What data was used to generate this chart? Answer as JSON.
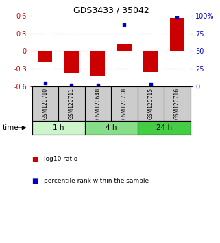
{
  "title": "GDS3433 / 35042",
  "samples": [
    "GSM120710",
    "GSM120711",
    "GSM120648",
    "GSM120708",
    "GSM120715",
    "GSM120716"
  ],
  "log10_ratio": [
    -0.18,
    -0.38,
    -0.42,
    0.12,
    -0.36,
    0.57
  ],
  "percentile_rank": [
    5,
    2,
    2,
    87,
    3,
    98
  ],
  "time_groups": [
    {
      "label": "1 h",
      "start": 0,
      "end": 2,
      "color": "#ccf5cc"
    },
    {
      "label": "4 h",
      "start": 2,
      "end": 4,
      "color": "#88dd88"
    },
    {
      "label": "24 h",
      "start": 4,
      "end": 6,
      "color": "#44cc44"
    }
  ],
  "bar_color": "#cc0000",
  "dot_color": "#0000cc",
  "ylim_left": [
    -0.6,
    0.6
  ],
  "ylim_right": [
    0,
    100
  ],
  "yticks_left": [
    -0.6,
    -0.3,
    0,
    0.3,
    0.6
  ],
  "ytick_labels_left": [
    "-0.6",
    "-0.3",
    "0",
    "0.3",
    "0.6"
  ],
  "yticks_right": [
    0,
    25,
    50,
    75,
    100
  ],
  "ytick_labels_right": [
    "0",
    "25",
    "50",
    "75",
    "100%"
  ],
  "hline_zero_color": "#cc0000",
  "hline_dotted_color": "#777777",
  "bg_color": "#ffffff",
  "sample_box_color": "#cccccc",
  "time_label": "time",
  "legend_ratio_label": "log10 ratio",
  "legend_percentile_label": "percentile rank within the sample"
}
